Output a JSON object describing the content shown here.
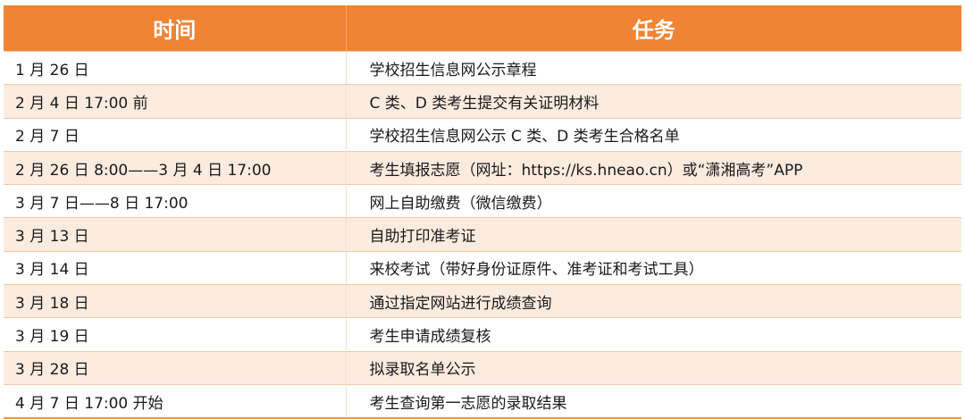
{
  "header": {
    "time": "时间",
    "task": "任务"
  },
  "rows": [
    {
      "time": "1 月 26 日",
      "task": "学校招生信息网公示章程"
    },
    {
      "time": "2 月 4 日  17:00 前",
      "task": "C 类、D 类考生提交有关证明材料"
    },
    {
      "time": "2 月 7 日",
      "task": "学校招生信息网公示 C 类、D 类考生合格名单"
    },
    {
      "time": "2 月 26 日  8:00——3 月 4  日  17:00",
      "task": "考生填报志愿（网址：https://ks.hneao.cn）或“潇湘高考”APP"
    },
    {
      "time": "3  月 7 日——8 日  17:00",
      "task": "网上自助缴费（微信缴费）"
    },
    {
      "time": "3 月 13 日",
      "task": "自助打印准考证"
    },
    {
      "time": "3 月 14 日",
      "task": "来校考试（带好身份证原件、准考证和考试工具）"
    },
    {
      "time": "3 月 18 日",
      "task": "通过指定网站进行成绩查询"
    },
    {
      "time": "3 月 19 日",
      "task": "考生申请成绩复核"
    },
    {
      "time": "3 月 28 日",
      "task": "拟录取名单公示"
    },
    {
      "time": "4 月 7 日  17:00 开始",
      "task": "考生查询第一志愿的录取结果"
    }
  ],
  "colors": {
    "header": "#ef8434",
    "alt_row": "#fcebdf"
  }
}
